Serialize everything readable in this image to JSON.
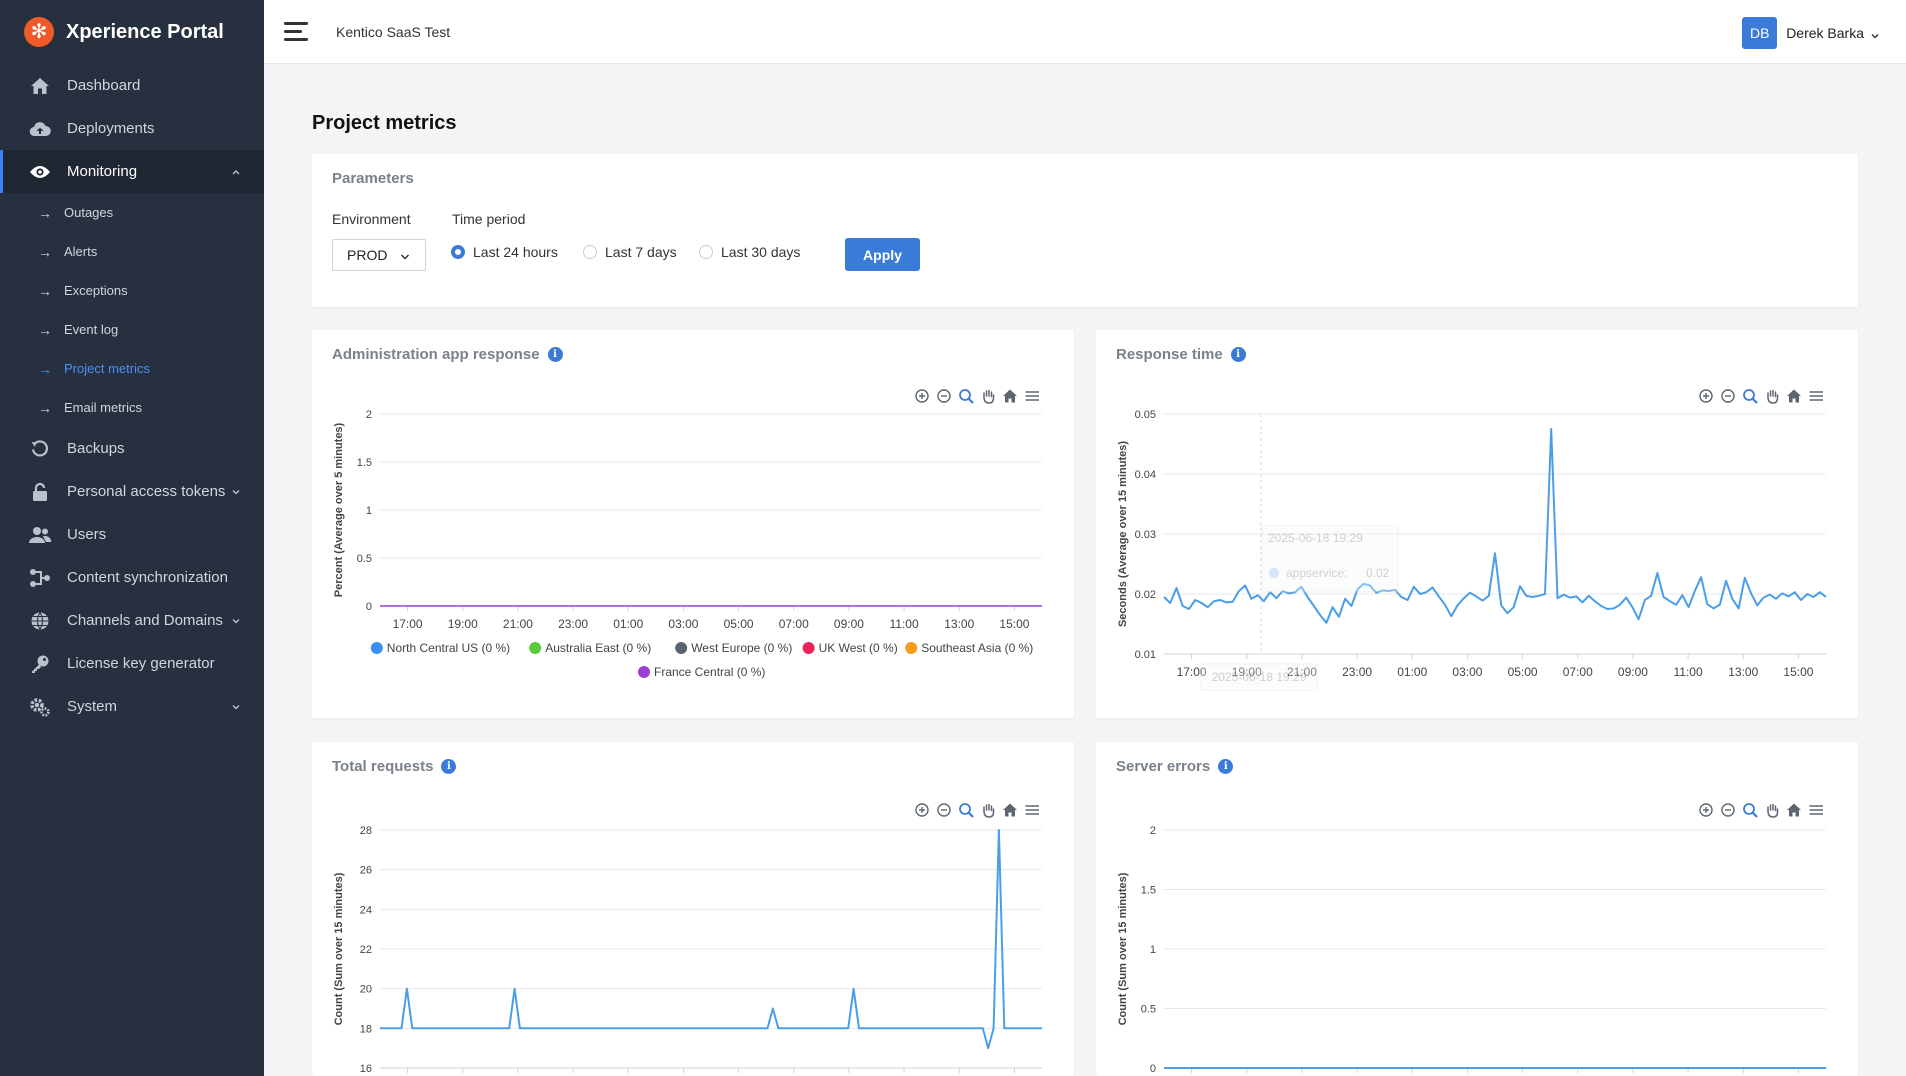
{
  "brand": {
    "name": "Xperience Portal",
    "logo_icon": "asterisk-logo-icon",
    "color": "#f05a28"
  },
  "sidebar": {
    "items": [
      {
        "label": "Dashboard",
        "icon": "home-icon"
      },
      {
        "label": "Deployments",
        "icon": "cloud-upload-icon"
      },
      {
        "label": "Monitoring",
        "icon": "eye-icon",
        "expanded": true,
        "active": true
      },
      {
        "label": "Backups",
        "icon": "history-icon"
      },
      {
        "label": "Personal access tokens",
        "icon": "lock-icon",
        "has_chevron": true
      },
      {
        "label": "Users",
        "icon": "users-icon"
      },
      {
        "label": "Content synchronization",
        "icon": "sync-icon"
      },
      {
        "label": "Channels and Domains",
        "icon": "globe-icon",
        "has_chevron": true
      },
      {
        "label": "License key generator",
        "icon": "key-icon"
      },
      {
        "label": "System",
        "icon": "gears-icon",
        "has_chevron": true
      }
    ],
    "monitoring_sub": [
      {
        "label": "Outages"
      },
      {
        "label": "Alerts"
      },
      {
        "label": "Exceptions"
      },
      {
        "label": "Event log"
      },
      {
        "label": "Project metrics",
        "current": true
      },
      {
        "label": "Email metrics"
      }
    ]
  },
  "header": {
    "project_name": "Kentico SaaS Test",
    "user": {
      "initials": "DB",
      "name": "Derek Barka"
    }
  },
  "main": {
    "title": "Project metrics",
    "parameters": {
      "title": "Parameters",
      "environment_label": "Environment",
      "environment_value": "PROD",
      "time_period_label": "Time period",
      "time_options": [
        "Last 24 hours",
        "Last 7 days",
        "Last 30 days"
      ],
      "selected_time": "Last 24 hours",
      "apply_label": "Apply"
    }
  },
  "colors": {
    "accent": "#3b7bd8",
    "line": "#4a9ee8",
    "purple": "#9b3fd6"
  },
  "chart_data": [
    {
      "id": "admin",
      "type": "line",
      "title": "Administration app response",
      "ylabel": "Percent (Average over 5 minutes)",
      "ylim": [
        0,
        2
      ],
      "yticks": [
        "2",
        "1.5",
        "1",
        "0.5",
        "0"
      ],
      "xticks": [
        "17:00",
        "19:00",
        "21:00",
        "23:00",
        "01:00",
        "03:00",
        "05:00",
        "07:00",
        "09:00",
        "11:00",
        "13:00",
        "15:00"
      ],
      "legend": [
        {
          "name": "North Central US (0 %)",
          "color": "#3b8ff0"
        },
        {
          "name": "Australia East (0 %)",
          "color": "#5cc93a"
        },
        {
          "name": "West Europe (0 %)",
          "color": "#5a6470"
        },
        {
          "name": "UK West (0 %)",
          "color": "#e8245a"
        },
        {
          "name": "Southeast Asia (0 %)",
          "color": "#f59b1e"
        },
        {
          "name": "France Central (0 %)",
          "color": "#9b3fd6"
        }
      ],
      "series": [
        {
          "values": [
            0,
            0
          ]
        }
      ]
    },
    {
      "id": "response",
      "type": "line",
      "title": "Response time",
      "ylabel": "Seconds (Average over 15 minutes)",
      "ylim": [
        0.01,
        0.05
      ],
      "yticks": [
        "0.05",
        "0.04",
        "0.03",
        "0.02",
        "0.01"
      ],
      "xticks": [
        "17:00",
        "19:00",
        "21:00",
        "23:00",
        "01:00",
        "03:00",
        "05:00",
        "07:00",
        "09:00",
        "11:00",
        "13:00",
        "15:00"
      ],
      "tooltip": {
        "date": "2025-06-18 19:29",
        "series": "appservice:",
        "value": "0.02"
      },
      "series": [
        {
          "name": "appservice",
          "values": [
            0.0195,
            0.0185,
            0.021,
            0.018,
            0.0175,
            0.019,
            0.0185,
            0.0178,
            0.0188,
            0.019,
            0.0186,
            0.0187,
            0.0205,
            0.0214,
            0.0192,
            0.0198,
            0.0188,
            0.0203,
            0.0193,
            0.0205,
            0.0201,
            0.0203,
            0.0212,
            0.0195,
            0.018,
            0.0165,
            0.0152,
            0.0178,
            0.0162,
            0.0192,
            0.018,
            0.0208,
            0.0217,
            0.0214,
            0.0202,
            0.0206,
            0.0205,
            0.0207,
            0.0195,
            0.019,
            0.0212,
            0.02,
            0.0203,
            0.0211,
            0.0196,
            0.0182,
            0.0163,
            0.0181,
            0.0193,
            0.0202,
            0.0196,
            0.0189,
            0.0197,
            0.0268,
            0.0181,
            0.0168,
            0.0178,
            0.0213,
            0.0197,
            0.0195,
            0.0197,
            0.02,
            0.0475,
            0.0193,
            0.0199,
            0.0194,
            0.0196,
            0.0186,
            0.0197,
            0.0188,
            0.018,
            0.0175,
            0.0176,
            0.0182,
            0.0194,
            0.0178,
            0.0158,
            0.019,
            0.0197,
            0.0235,
            0.0195,
            0.0188,
            0.0182,
            0.0198,
            0.0178,
            0.0205,
            0.0228,
            0.0183,
            0.0176,
            0.0182,
            0.0222,
            0.0192,
            0.0176,
            0.0227,
            0.0201,
            0.0181,
            0.0194,
            0.0199,
            0.0192,
            0.0201,
            0.0196,
            0.0203,
            0.019,
            0.02,
            0.0195,
            0.0203,
            0.0195
          ]
        }
      ]
    },
    {
      "id": "requests",
      "type": "line",
      "title": "Total requests",
      "ylabel": "Count (Sum over 15 minutes)",
      "ylim": [
        16,
        28
      ],
      "yticks": [
        "28",
        "26",
        "24",
        "22",
        "20",
        "18",
        "16"
      ],
      "series": [
        {
          "values": [
            18,
            18,
            18,
            18,
            18,
            20,
            18,
            18,
            18,
            18,
            18,
            18,
            18,
            18,
            18,
            18,
            18,
            18,
            18,
            18,
            18,
            18,
            18,
            18,
            18,
            20,
            18,
            18,
            18,
            18,
            18,
            18,
            18,
            18,
            18,
            18,
            18,
            18,
            18,
            18,
            18,
            18,
            18,
            18,
            18,
            18,
            18,
            18,
            18,
            18,
            18,
            18,
            18,
            18,
            18,
            18,
            18,
            18,
            18,
            18,
            18,
            18,
            18,
            18,
            18,
            18,
            18,
            18,
            18,
            18,
            18,
            18,
            18,
            19,
            18,
            18,
            18,
            18,
            18,
            18,
            18,
            18,
            18,
            18,
            18,
            18,
            18,
            18,
            20,
            18,
            18,
            18,
            18,
            18,
            18,
            18,
            18,
            18,
            18,
            18,
            18,
            18,
            18,
            18,
            18,
            18,
            18,
            18,
            18,
            18,
            18,
            18,
            18,
            17,
            18,
            28,
            18,
            18,
            18,
            18,
            18,
            18,
            18,
            18
          ]
        }
      ]
    },
    {
      "id": "errors",
      "type": "line",
      "title": "Server errors",
      "ylabel": "Count (Sum over 15 minutes)",
      "ylim": [
        0,
        2
      ],
      "yticks": [
        "2",
        "1.5",
        "1",
        "0.5",
        "0"
      ],
      "series": [
        {
          "values": [
            0,
            0
          ]
        }
      ]
    }
  ]
}
